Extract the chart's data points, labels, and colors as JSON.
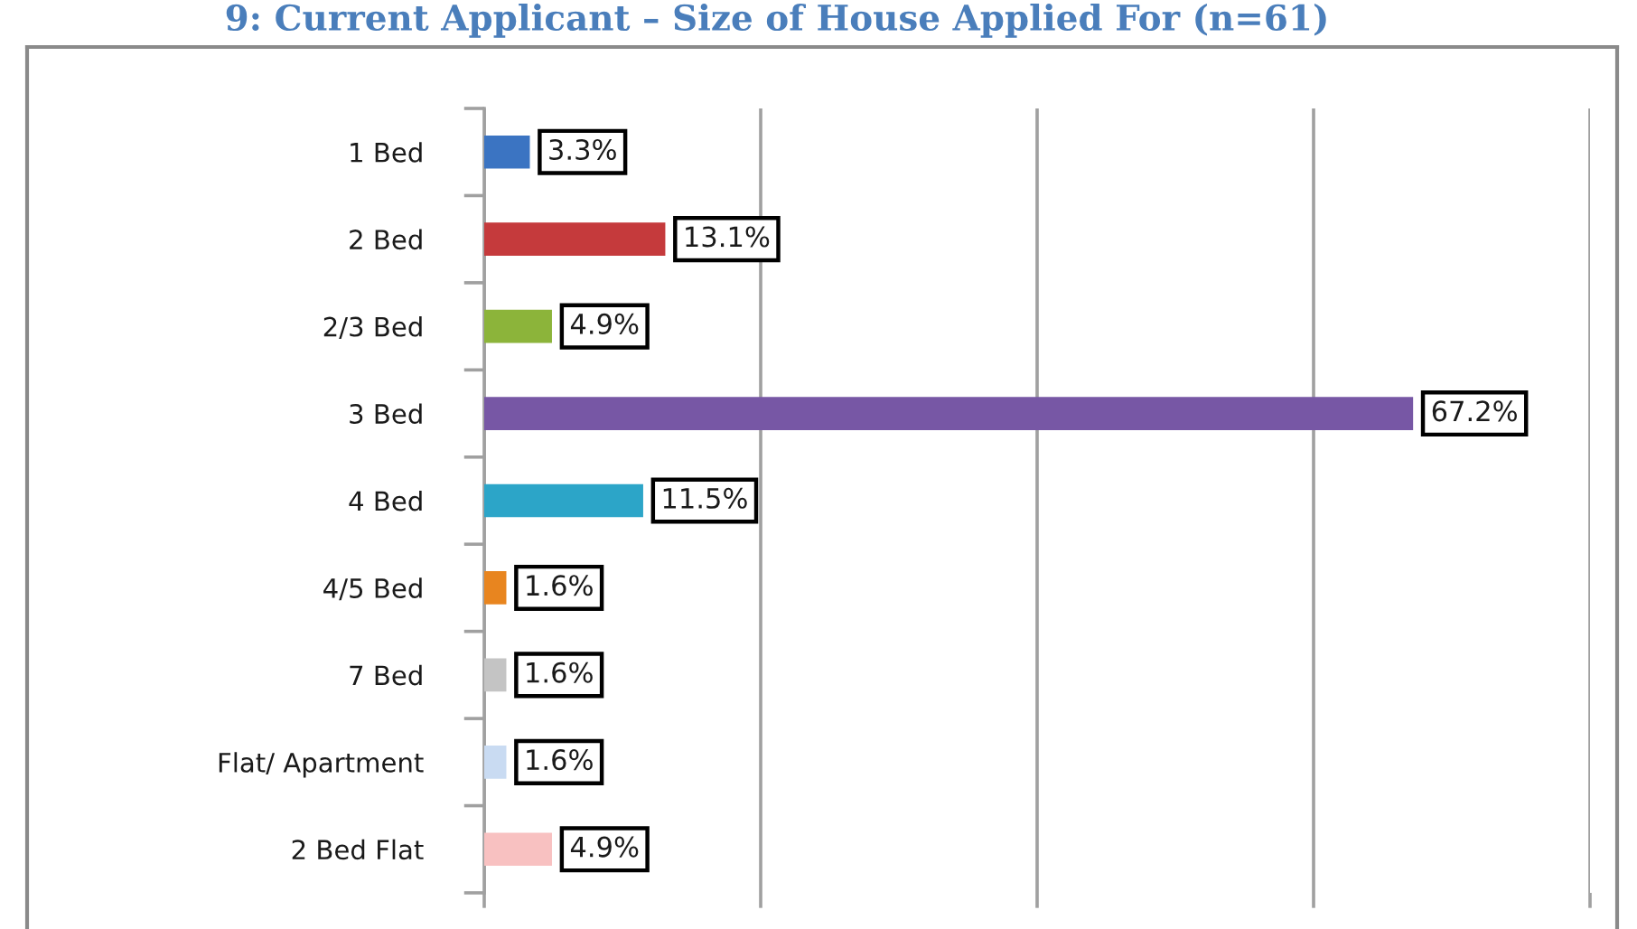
{
  "chart_data": {
    "type": "bar",
    "orientation": "horizontal",
    "title": "9: Current Applicant – Size of House Applied For (n=61)",
    "categories": [
      "1 Bed",
      "2 Bed",
      "2/3 Bed",
      "3 Bed",
      "4 Bed",
      "4/5 Bed",
      "7 Bed",
      "Flat/ Apartment",
      "2 Bed Flat"
    ],
    "values": [
      3.3,
      13.1,
      4.9,
      67.2,
      11.5,
      1.6,
      1.6,
      1.6,
      4.9
    ],
    "colors": [
      "#3b74c2",
      "#c53a3c",
      "#8cb43a",
      "#7757a5",
      "#2ca5c8",
      "#e8851f",
      "#c4c4c4",
      "#c9dbf2",
      "#f8c1c1"
    ],
    "value_labels": [
      "3.3%",
      "13.1%",
      "4.9%",
      "67.2%",
      "11.5%",
      "1.6%",
      "1.6%",
      "1.6%",
      "4.9%"
    ],
    "xlim": [
      0,
      80
    ],
    "xticks": [
      {
        "value": 0,
        "label": null
      },
      {
        "value": 20,
        "label": null
      },
      {
        "value": 40,
        "label": null
      },
      {
        "value": 60,
        "label": null
      },
      {
        "value": 80,
        "label": null
      }
    ],
    "grid": "x"
  }
}
